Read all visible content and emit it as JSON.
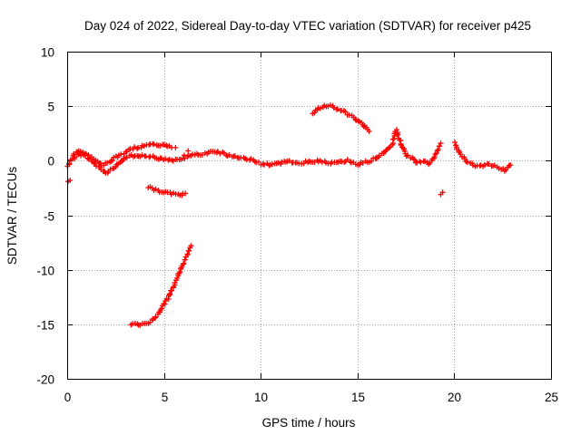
{
  "chart_data": {
    "type": "scatter",
    "title": "Day 024 of 2022, Sidereal Day-to-day VTEC variation (SDTVAR) for receiver p425",
    "xlabel": "GPS time / hours",
    "ylabel": "SDTVAR / TECUs",
    "xlim": [
      0,
      25
    ],
    "ylim": [
      -20,
      10
    ],
    "xticks": [
      0,
      5,
      10,
      15,
      20,
      25
    ],
    "yticks": [
      -20,
      -15,
      -10,
      -5,
      0,
      5,
      10
    ],
    "grid": true,
    "marker": "+",
    "color": "#ff0000",
    "series": [
      {
        "name": "main baseline track",
        "x": [
          0.0,
          0.2,
          0.5,
          0.8,
          1.2,
          1.6,
          2.0,
          2.5,
          3.0,
          3.5,
          4.0,
          4.5,
          5.0,
          5.5,
          6.0,
          6.5,
          7.0,
          7.5,
          8.0,
          8.5,
          9.0,
          9.5,
          10.0,
          10.5,
          11.0,
          11.5,
          12.0,
          12.5,
          13.0,
          13.5,
          14.0,
          14.5,
          15.0,
          15.5,
          16.0
        ],
        "y": [
          -0.5,
          0.0,
          0.5,
          0.6,
          0.1,
          -0.6,
          -1.2,
          -0.5,
          0.3,
          0.5,
          0.4,
          0.3,
          0.1,
          0.0,
          0.2,
          0.5,
          0.6,
          0.8,
          0.7,
          0.4,
          0.3,
          0.1,
          -0.3,
          -0.4,
          -0.2,
          -0.1,
          -0.2,
          -0.1,
          0.0,
          -0.2,
          -0.1,
          0.0,
          -0.3,
          -0.1,
          0.3
        ]
      },
      {
        "name": "early upper arc",
        "x": [
          0.3,
          0.6,
          1.0,
          1.4,
          1.8,
          2.2,
          2.6,
          3.0,
          3.4,
          3.8,
          4.2,
          4.6,
          5.0,
          5.4
        ],
        "y": [
          0.5,
          0.9,
          0.6,
          0.2,
          -0.4,
          -0.1,
          0.4,
          0.8,
          1.1,
          1.3,
          1.4,
          1.5,
          1.4,
          1.2
        ]
      },
      {
        "name": "lower rising arc",
        "x": [
          3.3,
          3.6,
          4.0,
          4.3,
          4.6,
          4.9,
          5.2,
          5.5,
          5.8,
          6.0,
          6.2,
          6.4
        ],
        "y": [
          -15.0,
          -15.0,
          -15.0,
          -14.8,
          -14.3,
          -13.5,
          -12.6,
          -11.5,
          -10.3,
          -9.5,
          -8.7,
          -7.8
        ]
      },
      {
        "name": "short negative segment",
        "x": [
          4.2,
          4.6,
          5.0,
          5.4,
          5.8,
          6.1
        ],
        "y": [
          -2.4,
          -2.7,
          -2.9,
          -3.0,
          -3.1,
          -3.0
        ]
      },
      {
        "name": "mid-day high arc",
        "x": [
          12.7,
          13.0,
          13.3,
          13.6,
          13.9,
          14.2,
          14.5,
          14.8,
          15.1,
          15.4,
          15.6
        ],
        "y": [
          4.4,
          4.8,
          5.0,
          5.0,
          4.8,
          4.6,
          4.3,
          4.0,
          3.6,
          3.1,
          2.7
        ]
      },
      {
        "name": "afternoon oscillating track",
        "x": [
          16.0,
          16.4,
          16.8,
          17.0,
          17.2,
          17.5,
          17.8,
          18.1,
          18.4,
          18.7,
          19.0,
          19.3
        ],
        "y": [
          0.3,
          0.8,
          1.5,
          2.8,
          1.8,
          0.5,
          0.2,
          -0.2,
          0.0,
          -0.3,
          0.4,
          1.6
        ]
      },
      {
        "name": "late scattered track",
        "x": [
          20.0,
          20.3,
          20.6,
          21.0,
          21.4,
          21.8,
          22.2,
          22.6,
          22.9
        ],
        "y": [
          1.6,
          0.7,
          0.0,
          -0.4,
          -0.5,
          -0.3,
          -0.6,
          -0.9,
          -0.4
        ]
      },
      {
        "name": "isolated points",
        "x": [
          0.05,
          0.15,
          6.05,
          6.25,
          5.6,
          19.4,
          19.3
        ],
        "y": [
          -1.9,
          -1.8,
          0.5,
          0.9,
          1.2,
          -2.9,
          -3.1
        ]
      }
    ]
  }
}
